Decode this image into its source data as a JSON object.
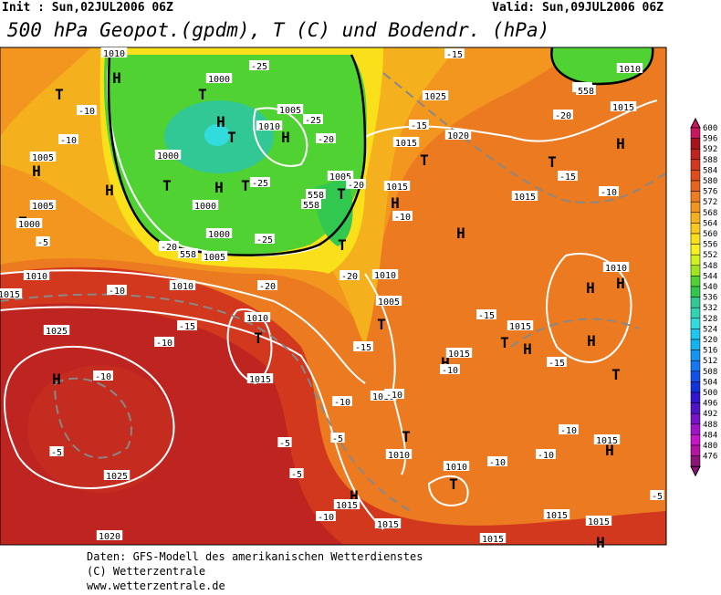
{
  "header": {
    "init": "Init : Sun,02JUL2006 06Z",
    "valid": "Valid: Sun,09JUL2006 06Z",
    "title": "500 hPa Geopot.(gpdm), T (C) und Bodendr. (hPa)"
  },
  "colorbar": [
    {
      "label": 600,
      "color": "#c8175e"
    },
    {
      "label": 596,
      "color": "#a8141e"
    },
    {
      "label": 592,
      "color": "#be2420"
    },
    {
      "label": 588,
      "color": "#d2381e"
    },
    {
      "label": 584,
      "color": "#e04c1e"
    },
    {
      "label": 580,
      "color": "#e8641e"
    },
    {
      "label": 576,
      "color": "#ee7c20"
    },
    {
      "label": 572,
      "color": "#f29620"
    },
    {
      "label": 568,
      "color": "#f5b01e"
    },
    {
      "label": 564,
      "color": "#f8c81c"
    },
    {
      "label": 560,
      "color": "#fae01a"
    },
    {
      "label": 556,
      "color": "#f5f01e"
    },
    {
      "label": 552,
      "color": "#d2f01e"
    },
    {
      "label": 548,
      "color": "#a0e61e"
    },
    {
      "label": 544,
      "color": "#50d232"
    },
    {
      "label": 540,
      "color": "#32c850"
    },
    {
      "label": 536,
      "color": "#32c896"
    },
    {
      "label": 532,
      "color": "#32d2b4"
    },
    {
      "label": 528,
      "color": "#32dcdc"
    },
    {
      "label": 524,
      "color": "#1ec8f0"
    },
    {
      "label": 520,
      "color": "#14b4f0"
    },
    {
      "label": 516,
      "color": "#1496f0"
    },
    {
      "label": 512,
      "color": "#1478f0"
    },
    {
      "label": 508,
      "color": "#1450e6"
    },
    {
      "label": 504,
      "color": "#1432dc"
    },
    {
      "label": 500,
      "color": "#3214d2"
    },
    {
      "label": 496,
      "color": "#5014c8"
    },
    {
      "label": 492,
      "color": "#7814c8"
    },
    {
      "label": 488,
      "color": "#a014c8"
    },
    {
      "label": 484,
      "color": "#c814c8"
    },
    {
      "label": 480,
      "color": "#b414a0"
    },
    {
      "label": 476,
      "color": "#8c1478"
    }
  ],
  "map": {
    "labels": [
      "H",
      "H",
      "H",
      "H",
      "H",
      "H",
      "H",
      "H",
      "H",
      "H",
      "H",
      "H",
      "H",
      "H",
      "H",
      "H",
      "H",
      "H",
      "T",
      "T",
      "T",
      "T",
      "T",
      "T",
      "T",
      "T",
      "T",
      "T",
      "T",
      "T",
      "T",
      "T",
      "T",
      "T",
      "1010",
      "1000",
      "1005",
      "1010",
      "1000",
      "1005",
      "1000",
      "1000",
      "1005",
      "1005",
      "1000",
      "1010",
      "1015",
      "1010",
      "1010",
      "1015",
      "1025",
      "1025",
      "1020",
      "1015",
      "1020",
      "1025",
      "1015",
      "1015",
      "1005",
      "1010",
      "1005",
      "1015",
      "1015",
      "1010",
      "1015",
      "1010",
      "1010",
      "1010",
      "1010",
      "1015",
      "1015",
      "1015",
      "1015",
      "1015",
      "1015",
      "-10",
      "-10",
      "-25",
      "-25",
      "-20",
      "-25",
      "-20",
      "-15",
      "-20",
      "-15",
      "-10",
      "-25",
      "-15",
      "-5",
      "-10",
      "-15",
      "-10",
      "-20",
      "-20",
      "-15",
      "-15",
      "-15",
      "-10",
      "-10",
      "-10",
      "-10",
      "-10",
      "-10",
      "-10",
      "-5",
      "-5",
      "-5",
      "-5",
      "-10",
      "-5",
      "-10",
      "-20",
      "-25",
      "558",
      "558",
      "558",
      "558"
    ]
  },
  "footer": {
    "lines": [
      "Daten: GFS-Modell des amerikanischen Wetterdienstes",
      "(C) Wetterzentrale",
      "www.wetterzentrale.de"
    ]
  }
}
